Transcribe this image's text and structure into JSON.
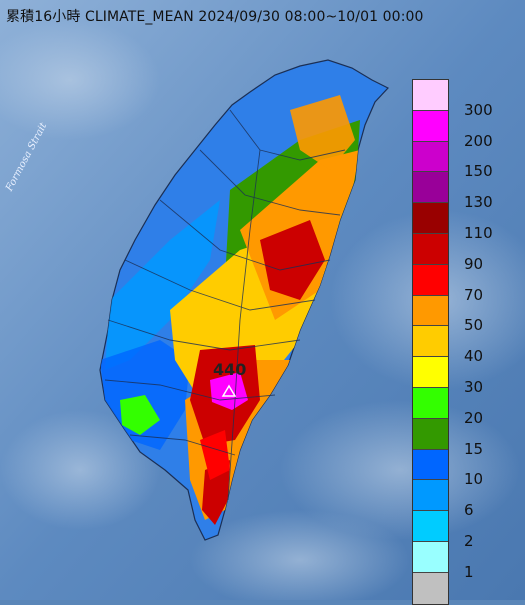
{
  "title": "累積16小時 CLIMATE_MEAN 2024/09/30 08:00~10/01 00:00",
  "strait_label": "Formosa Strait",
  "peak_label": "440",
  "legend": [
    {
      "label": "300",
      "color": "#ffccff"
    },
    {
      "label": "200",
      "color": "#ff00ff"
    },
    {
      "label": "150",
      "color": "#cc00cc"
    },
    {
      "label": "130",
      "color": "#990099"
    },
    {
      "label": "110",
      "color": "#990000"
    },
    {
      "label": "90",
      "color": "#cc0000"
    },
    {
      "label": "70",
      "color": "#ff0000"
    },
    {
      "label": "50",
      "color": "#ff9900"
    },
    {
      "label": "40",
      "color": "#ffcc00"
    },
    {
      "label": "30",
      "color": "#ffff00"
    },
    {
      "label": "20",
      "color": "#33ff00"
    },
    {
      "label": "15",
      "color": "#339900"
    },
    {
      "label": "10",
      "color": "#0066ff"
    },
    {
      "label": "6",
      "color": "#0099ff"
    },
    {
      "label": "2",
      "color": "#00ccff"
    },
    {
      "label": "1",
      "color": "#99ffff"
    },
    {
      "label": "",
      "color": "#c0c0c0"
    }
  ]
}
